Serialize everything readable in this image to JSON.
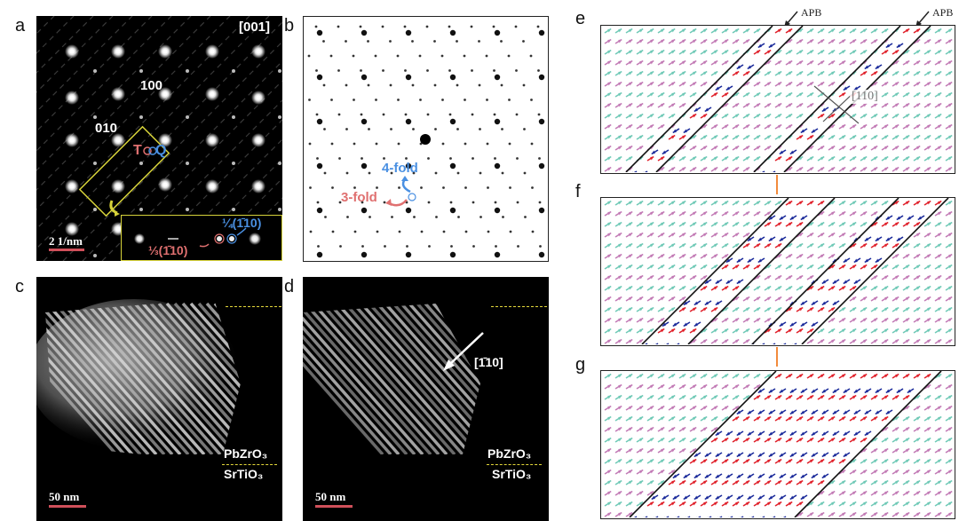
{
  "panels": {
    "a": {
      "label": "a",
      "zone_axis": "[001]",
      "spot_100": "100",
      "spot_010": "010",
      "T": "T",
      "Q": "Q",
      "inset_quarter": "¼(1̄10)",
      "inset_third": "⅓(1̄10)",
      "scalebar": "2 1/nm"
    },
    "b": {
      "label": "b",
      "fourfold": "4-fold",
      "threefold": "3-fold"
    },
    "c": {
      "label": "c",
      "film": "PbZrO₃",
      "substrate": "SrTiO₃",
      "scalebar": "50 nm"
    },
    "d": {
      "label": "d",
      "direction": "[1̄10]",
      "film": "PbZrO₃",
      "substrate": "SrTiO₃",
      "scalebar": "50 nm"
    },
    "e": {
      "label": "e",
      "apb1": "APB",
      "apb2": "APB",
      "direction": "[110]"
    },
    "f": {
      "label": "f"
    },
    "g": {
      "label": "g"
    }
  },
  "colors": {
    "spot": "#ffffff",
    "inset_border": "#d6d23a",
    "T_color": "#e07070",
    "Q_color": "#4a90e2",
    "fourfold_color": "#4a90e2",
    "threefold_color": "#e07070",
    "dash": "#e5d93a",
    "scalebar": "#d0505a",
    "arrow_pink": "#c27ab5",
    "arrow_teal": "#6fc9b6",
    "arrow_red": "#e0202a",
    "arrow_blue": "#1a2a9a",
    "connector": "#f28b3c"
  }
}
